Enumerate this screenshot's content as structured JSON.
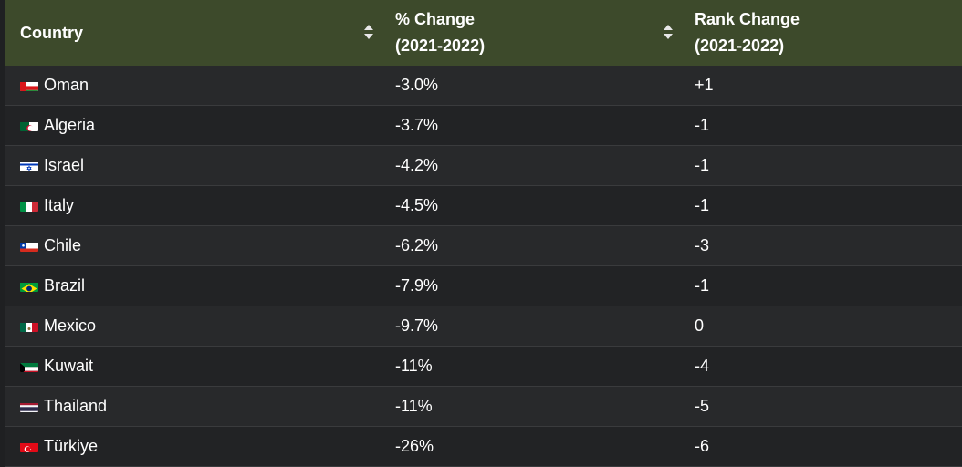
{
  "header": {
    "country": "Country",
    "pct_line1": "% Change",
    "pct_line2": "(2021-2022)",
    "rank_line1": "Rank Change",
    "rank_line2": "(2021-2022)"
  },
  "rows": [
    {
      "country": "Oman",
      "flag": "oman-flag",
      "pct": "-3.0%",
      "rank": "+1"
    },
    {
      "country": "Algeria",
      "flag": "algeria-flag",
      "pct": "-3.7%",
      "rank": "-1"
    },
    {
      "country": "Israel",
      "flag": "israel-flag",
      "pct": "-4.2%",
      "rank": "-1"
    },
    {
      "country": "Italy",
      "flag": "italy-flag",
      "pct": "-4.5%",
      "rank": "-1"
    },
    {
      "country": "Chile",
      "flag": "chile-flag",
      "pct": "-6.2%",
      "rank": "-3"
    },
    {
      "country": "Brazil",
      "flag": "brazil-flag",
      "pct": "-7.9%",
      "rank": "-1"
    },
    {
      "country": "Mexico",
      "flag": "mexico-flag",
      "pct": "-9.7%",
      "rank": "0"
    },
    {
      "country": "Kuwait",
      "flag": "kuwait-flag",
      "pct": "-11%",
      "rank": "-4"
    },
    {
      "country": "Thailand",
      "flag": "thailand-flag",
      "pct": "-11%",
      "rank": "-5"
    },
    {
      "country": "Türkiye",
      "flag": "turkiye-flag",
      "pct": "-26%",
      "rank": "-6"
    }
  ],
  "colors": {
    "header_bg": "#3d4a2b",
    "row_odd": "#28292b",
    "row_even": "#222325",
    "text": "#ffffff"
  }
}
